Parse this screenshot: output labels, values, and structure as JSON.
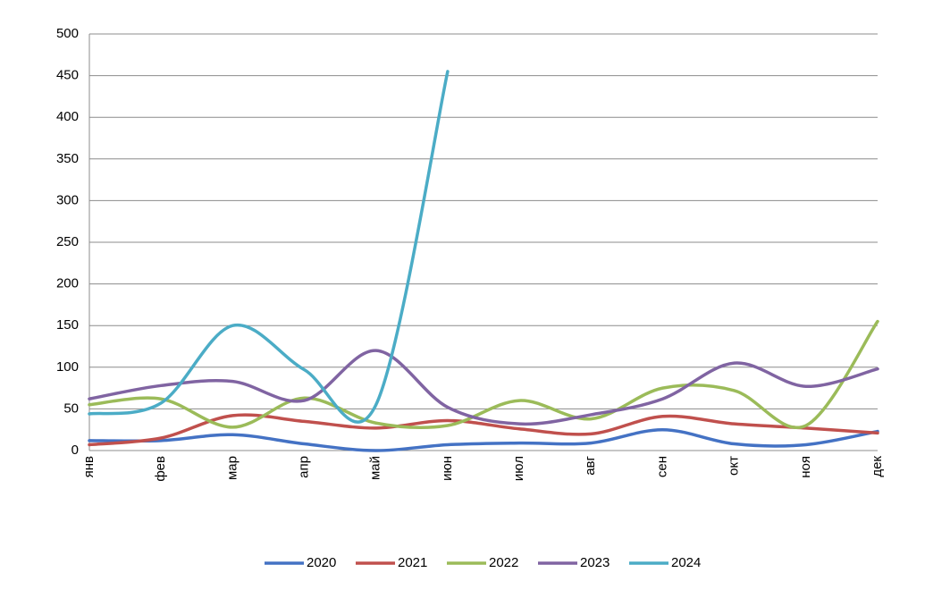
{
  "chart_data": {
    "type": "line",
    "categories": [
      "янв",
      "фев",
      "мар",
      "апр",
      "май",
      "июн",
      "июл",
      "авг",
      "сен",
      "окт",
      "ноя",
      "дек"
    ],
    "series": [
      {
        "name": "2020",
        "color": "#4472c4",
        "values": [
          12,
          12,
          19,
          8,
          0,
          7,
          9,
          9,
          25,
          8,
          7,
          23
        ]
      },
      {
        "name": "2021",
        "color": "#c0504d",
        "values": [
          7,
          15,
          42,
          35,
          27,
          36,
          26,
          20,
          41,
          32,
          27,
          21
        ]
      },
      {
        "name": "2022",
        "color": "#9bbb59",
        "values": [
          55,
          62,
          28,
          63,
          33,
          30,
          60,
          38,
          75,
          72,
          30,
          155
        ]
      },
      {
        "name": "2023",
        "color": "#8064a2",
        "values": [
          62,
          78,
          83,
          60,
          120,
          52,
          32,
          43,
          62,
          105,
          77,
          98
        ]
      },
      {
        "name": "2024",
        "color": "#4bacc6",
        "values": [
          44,
          57,
          150,
          97,
          55,
          455,
          null,
          null,
          null,
          null,
          null,
          null
        ]
      }
    ],
    "ylim": [
      0,
      500
    ],
    "yticks": [
      0,
      50,
      100,
      150,
      200,
      250,
      300,
      350,
      400,
      450,
      500
    ],
    "grid": true,
    "smooth": true,
    "legend": "bottom"
  }
}
